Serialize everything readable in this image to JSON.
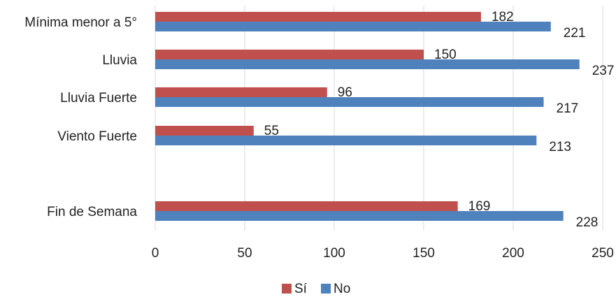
{
  "chart_data": {
    "type": "bar",
    "orientation": "horizontal",
    "categories": [
      "Mínima menor a 5°",
      "Lluvia",
      "Lluvia Fuerte",
      "Viento Fuerte",
      "",
      "Fin de Semana"
    ],
    "series": [
      {
        "name": "Sí",
        "color": "#c0504d",
        "values": [
          182,
          150,
          96,
          55,
          null,
          169
        ]
      },
      {
        "name": "No",
        "color": "#4f81bd",
        "values": [
          221,
          237,
          217,
          213,
          null,
          228
        ]
      }
    ],
    "xlim": [
      0,
      250
    ],
    "xticks": [
      0,
      50,
      100,
      150,
      200,
      250
    ],
    "grid": true,
    "legend": "bottom"
  }
}
